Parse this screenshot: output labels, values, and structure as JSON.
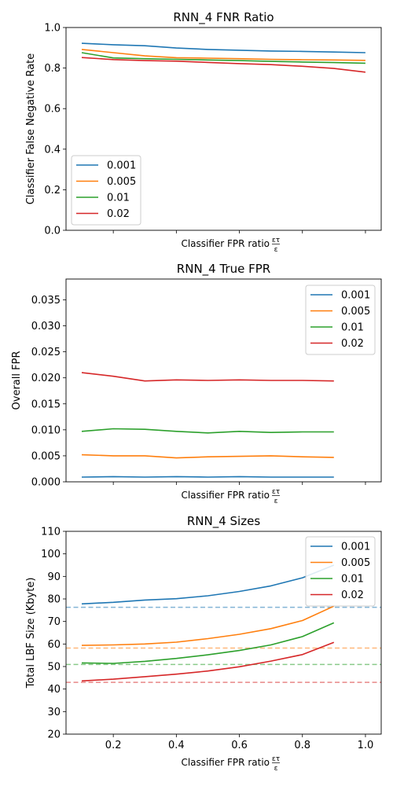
{
  "figure": {
    "xlabel": "Classifier FPR ratio",
    "xlabel_symbol_top": "ετ",
    "xlabel_symbol_bottom": "ε"
  },
  "chart_data": [
    {
      "type": "line",
      "title": "RNN_4 FNR Ratio",
      "xlabel": "Classifier FPR ratio ετ/ε",
      "ylabel": "Classifier False Negative Rate",
      "xlim": [
        0.05,
        1.05
      ],
      "ylim": [
        0.0,
        1.0
      ],
      "xticks": [
        0.2,
        0.4,
        0.6,
        0.8,
        1.0
      ],
      "xtick_labels_visible": false,
      "yticks": [
        0.0,
        0.2,
        0.4,
        0.6,
        0.8,
        1.0
      ],
      "ytick_labels": [
        "0.0",
        "0.2",
        "0.4",
        "0.6",
        "0.8",
        "1.0"
      ],
      "legend_position": "lower-left",
      "x": [
        0.1,
        0.2,
        0.3,
        0.4,
        0.5,
        0.6,
        0.7,
        0.8,
        0.9,
        1.0
      ],
      "series": [
        {
          "name": "0.001",
          "color": "#1f77b4",
          "values": [
            0.922,
            0.915,
            0.91,
            0.899,
            0.892,
            0.888,
            0.884,
            0.882,
            0.879,
            0.876
          ]
        },
        {
          "name": "0.005",
          "color": "#ff7f0e",
          "values": [
            0.892,
            0.876,
            0.86,
            0.851,
            0.849,
            0.846,
            0.843,
            0.841,
            0.84,
            0.838
          ]
        },
        {
          "name": "0.01",
          "color": "#2ca02c",
          "values": [
            0.876,
            0.85,
            0.846,
            0.843,
            0.84,
            0.837,
            0.833,
            0.83,
            0.827,
            0.824
          ]
        },
        {
          "name": "0.02",
          "color": "#d62728",
          "values": [
            0.852,
            0.842,
            0.837,
            0.834,
            0.828,
            0.822,
            0.817,
            0.809,
            0.798,
            0.78
          ]
        }
      ]
    },
    {
      "type": "line",
      "title": "RNN_4  True FPR",
      "xlabel": "Classifier FPR ratio ετ/ε",
      "ylabel": "Overall FPR",
      "xlim": [
        0.05,
        1.05
      ],
      "ylim": [
        0.0,
        0.039
      ],
      "xticks": [
        0.2,
        0.4,
        0.6,
        0.8,
        1.0
      ],
      "xtick_labels_visible": false,
      "yticks": [
        0.0,
        0.005,
        0.01,
        0.015,
        0.02,
        0.025,
        0.03,
        0.035
      ],
      "ytick_labels": [
        "0.000",
        "0.005",
        "0.010",
        "0.015",
        "0.020",
        "0.025",
        "0.030",
        "0.035"
      ],
      "legend_position": "top-right",
      "x": [
        0.1,
        0.2,
        0.3,
        0.4,
        0.5,
        0.6,
        0.7,
        0.8,
        0.9
      ],
      "series": [
        {
          "name": "0.001",
          "color": "#1f77b4",
          "values": [
            0.0009,
            0.001,
            0.0009,
            0.001,
            0.0009,
            0.001,
            0.0009,
            0.0009,
            0.0009
          ]
        },
        {
          "name": "0.005",
          "color": "#ff7f0e",
          "values": [
            0.0052,
            0.005,
            0.005,
            0.0046,
            0.0048,
            0.0049,
            0.005,
            0.0048,
            0.0047
          ]
        },
        {
          "name": "0.01",
          "color": "#2ca02c",
          "values": [
            0.0097,
            0.0102,
            0.0101,
            0.0097,
            0.0094,
            0.0097,
            0.0095,
            0.0096,
            0.0096
          ]
        },
        {
          "name": "0.02",
          "color": "#d62728",
          "values": [
            0.021,
            0.0203,
            0.0194,
            0.0196,
            0.0195,
            0.0196,
            0.0195,
            0.0195,
            0.0194
          ]
        }
      ]
    },
    {
      "type": "line",
      "title": "RNN_4 Sizes",
      "xlabel": "Classifier FPR ratio ετ/ε",
      "ylabel": "Total LBF Size (Kbyte)",
      "xlim": [
        0.05,
        1.05
      ],
      "ylim": [
        20,
        110
      ],
      "xticks": [
        0.2,
        0.4,
        0.6,
        0.8,
        1.0
      ],
      "xtick_labels": [
        "0.2",
        "0.4",
        "0.6",
        "0.8",
        "1.0"
      ],
      "yticks": [
        20,
        30,
        40,
        50,
        60,
        70,
        80,
        90,
        100,
        110
      ],
      "ytick_labels": [
        "20",
        "30",
        "40",
        "50",
        "60",
        "70",
        "80",
        "90",
        "100",
        "110"
      ],
      "legend_position": "top-right",
      "x": [
        0.1,
        0.2,
        0.3,
        0.4,
        0.5,
        0.6,
        0.7,
        0.8,
        0.9
      ],
      "series": [
        {
          "name": "0.001",
          "color": "#1f77b4",
          "values": [
            77.8,
            78.5,
            79.5,
            80.1,
            81.4,
            83.3,
            85.8,
            89.4,
            95.0
          ]
        },
        {
          "name": "0.005",
          "color": "#ff7f0e",
          "values": [
            59.4,
            59.6,
            60.0,
            60.8,
            62.4,
            64.3,
            66.8,
            70.4,
            76.8
          ]
        },
        {
          "name": "0.01",
          "color": "#2ca02c",
          "values": [
            51.6,
            51.4,
            52.3,
            53.6,
            55.2,
            57.1,
            59.6,
            63.3,
            69.4
          ]
        },
        {
          "name": "0.02",
          "color": "#d62728",
          "values": [
            43.6,
            44.4,
            45.5,
            46.6,
            48.0,
            49.9,
            52.4,
            55.3,
            60.7
          ]
        }
      ],
      "reference_lines": [
        {
          "color": "#1f77b4",
          "value": 76.3
        },
        {
          "color": "#ff7f0e",
          "value": 58.2
        },
        {
          "color": "#2ca02c",
          "value": 50.9
        },
        {
          "color": "#d62728",
          "value": 43.0
        }
      ]
    }
  ]
}
